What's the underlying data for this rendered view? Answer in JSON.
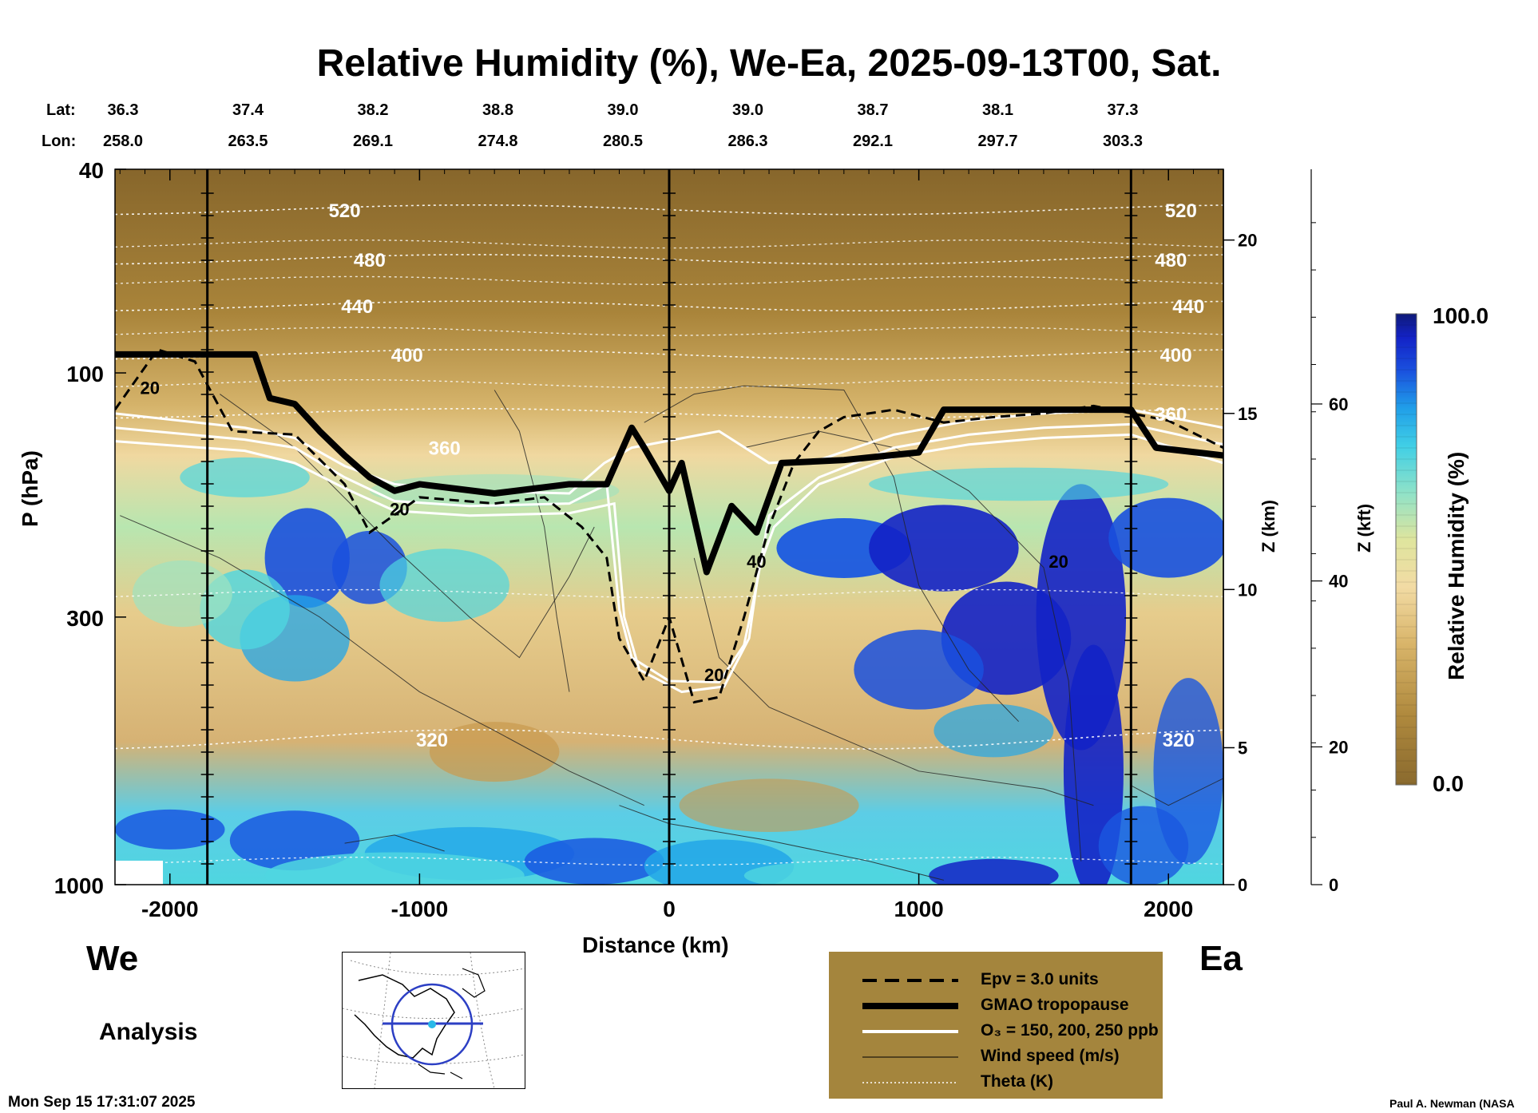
{
  "header": {
    "title": "Relative Humidity (%), We-Ea, 2025-09-13T00, Sat.",
    "lat_label": "Lat:",
    "lon_label": "Lon:",
    "lat_values": [
      "36.3",
      "37.4",
      "38.2",
      "38.8",
      "39.0",
      "39.0",
      "38.7",
      "38.1",
      "37.3"
    ],
    "lon_values": [
      "258.0",
      "263.5",
      "269.1",
      "274.8",
      "280.5",
      "286.3",
      "292.1",
      "297.7",
      "303.3"
    ]
  },
  "chart_data": {
    "type": "heatmap",
    "title": "Relative Humidity (%), We-Ea, 2025-09-13T00, Sat.",
    "xlabel": "Distance (km)",
    "ylabel": "P (hPa)",
    "x_ticks": [
      "-2000",
      "-1000",
      "0",
      "1000",
      "2000"
    ],
    "y_ticks": [
      "40",
      "100",
      "300",
      "1000"
    ],
    "y_scale": "log",
    "xlim": [
      -2220,
      2220
    ],
    "ylim": [
      1000,
      40
    ],
    "z_km_ticks": [
      "0",
      "5",
      "10",
      "15",
      "20"
    ],
    "z_km_label": "Z (km)",
    "z_kft_ticks": [
      "0",
      "20",
      "40",
      "60"
    ],
    "z_kft_label": "Z (kft)",
    "colorbar": {
      "label": "Relative Humidity (%)",
      "min": "0.0",
      "max": "100.0",
      "colors": [
        "#8a6a2e",
        "#b08a3e",
        "#d4ae60",
        "#f0d595",
        "#dfe59e",
        "#9fe2c0",
        "#4fd6e0",
        "#22a6e8",
        "#1a58e0",
        "#1322c6",
        "#0f1a88"
      ]
    },
    "theta_labels": [
      "520",
      "480",
      "440",
      "400",
      "360",
      "320"
    ],
    "theta_labels_right": [
      "520",
      "480",
      "440",
      "400",
      "360",
      "320"
    ],
    "wind_labels": [
      "20",
      "20",
      "20",
      "40",
      "20"
    ],
    "vertical_markers_km": [
      -1850,
      0,
      1850
    ],
    "tropopause": {
      "x": [
        -2220,
        -1660,
        -1600,
        -1500,
        -1400,
        -1300,
        -1200,
        -1100,
        -1000,
        -700,
        -400,
        -250,
        -150,
        -100,
        0,
        50,
        150,
        250,
        350,
        450,
        700,
        1000,
        1100,
        1500,
        1850,
        1950,
        2220
      ],
      "p": [
        92,
        92,
        112,
        115,
        130,
        145,
        160,
        170,
        165,
        172,
        165,
        165,
        128,
        140,
        170,
        150,
        245,
        182,
        205,
        150,
        148,
        143,
        118,
        118,
        118,
        140,
        145
      ]
    },
    "series": [
      {
        "name": "Epv = 3.0 units"
      },
      {
        "name": "GMAO tropopause"
      },
      {
        "name": "O3 = 150, 200, 250 ppb"
      },
      {
        "name": "Wind speed (m/s)"
      },
      {
        "name": "Theta (K)"
      }
    ]
  },
  "bottom": {
    "west_label": "We",
    "east_label": "Ea",
    "analysis_label": "Analysis",
    "timestamp": "Mon Sep 15 17:31:07 2025",
    "credit": "Paul A. Newman (NASA"
  },
  "legend": {
    "items": [
      {
        "label": "Epv = 3.0 units",
        "style": "dashed",
        "color": "#000000"
      },
      {
        "label": "GMAO tropopause",
        "style": "thick",
        "color": "#000000"
      },
      {
        "label": "O₃ = 150, 200, 250 ppb",
        "style": "solid",
        "color": "#ffffff"
      },
      {
        "label": "Wind speed (m/s)",
        "style": "thin",
        "color": "#000000"
      },
      {
        "label": "Theta (K)",
        "style": "dotted",
        "color": "#ffffff"
      }
    ]
  }
}
